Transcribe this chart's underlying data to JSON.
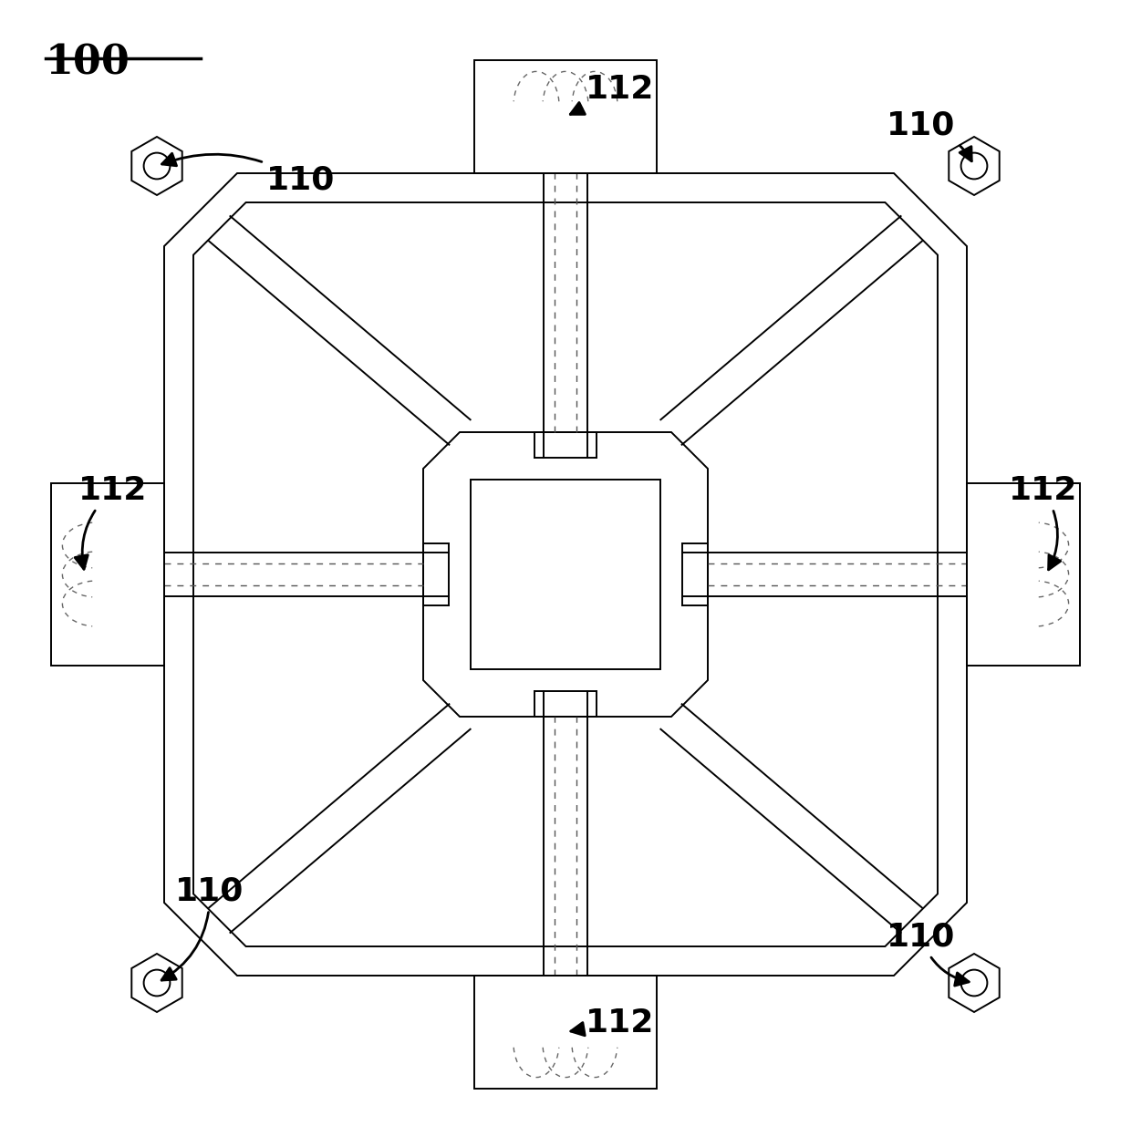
{
  "bg_color": "#ffffff",
  "line_color": "#000000",
  "label_100": "100",
  "label_110": "110",
  "label_112": "112",
  "lw_main": 1.4,
  "lw_thick": 2.0,
  "label_fontsize": 26
}
